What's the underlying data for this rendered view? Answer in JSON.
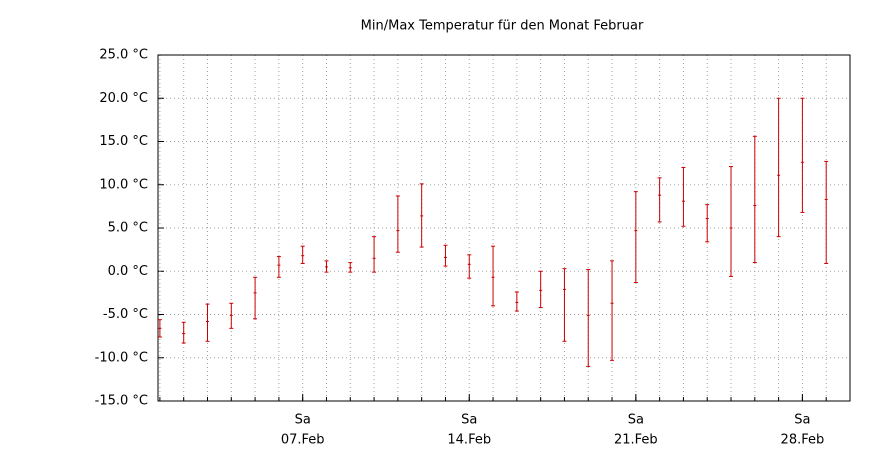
{
  "chart_data": {
    "type": "errorbar",
    "title": "Min/Max Temperatur für den Monat Februar",
    "x": [
      1,
      2,
      3,
      4,
      5,
      6,
      7,
      8,
      9,
      10,
      11,
      12,
      13,
      14,
      15,
      16,
      17,
      18,
      19,
      20,
      21,
      22,
      23,
      24,
      25,
      26,
      27,
      28,
      29
    ],
    "low": [
      -7.6,
      -8.3,
      -8.1,
      -6.6,
      -5.5,
      -0.7,
      0.9,
      -0.1,
      -0.1,
      -0.1,
      2.2,
      2.8,
      0.6,
      -0.8,
      -4.0,
      -4.6,
      -4.2,
      -8.1,
      -11.0,
      -10.3,
      -1.3,
      5.7,
      5.2,
      3.4,
      -0.6,
      1.0,
      4.0,
      6.8,
      0.9
    ],
    "mid": [
      -6.6,
      -7.2,
      -5.8,
      -5.1,
      -2.5,
      0.7,
      1.8,
      0.5,
      0.4,
      1.5,
      4.7,
      6.4,
      1.6,
      0.8,
      -0.7,
      -3.6,
      -2.2,
      -2.1,
      -5.1,
      -3.7,
      4.7,
      8.8,
      8.1,
      6.1,
      5.0,
      7.6,
      11.1,
      12.6,
      8.3
    ],
    "high": [
      -5.6,
      -5.9,
      -3.8,
      -3.7,
      -0.7,
      1.7,
      2.9,
      1.2,
      1.0,
      4.0,
      8.7,
      10.1,
      3.0,
      1.9,
      2.9,
      -2.4,
      0.0,
      0.3,
      0.2,
      1.2,
      9.2,
      10.8,
      12.0,
      7.7,
      12.1,
      15.6,
      20.0,
      20.0,
      12.7
    ],
    "color": "#cc0000",
    "xlim": [
      0.92,
      30
    ],
    "xticks": [
      {
        "value": 7,
        "label": "07.Feb",
        "weekday": "Sa"
      },
      {
        "value": 14,
        "label": "14.Feb",
        "weekday": "Sa"
      },
      {
        "value": 21,
        "label": "21.Feb",
        "weekday": "Sa"
      },
      {
        "value": 28,
        "label": "28.Feb",
        "weekday": "Sa"
      }
    ],
    "ylim": [
      -15,
      25
    ],
    "yticks": [
      {
        "value": -15,
        "label": "-15.0 °C"
      },
      {
        "value": -10,
        "label": "-10.0 °C"
      },
      {
        "value": -5,
        "label": "-5.0 °C"
      },
      {
        "value": 0,
        "label": "0.0 °C"
      },
      {
        "value": 5,
        "label": "5.0 °C"
      },
      {
        "value": 10,
        "label": "10.0 °C"
      },
      {
        "value": 15,
        "label": "15.0 °C"
      },
      {
        "value": 20,
        "label": "20.0 °C"
      },
      {
        "value": 25,
        "label": "25.0 °C"
      }
    ],
    "grid": true
  }
}
